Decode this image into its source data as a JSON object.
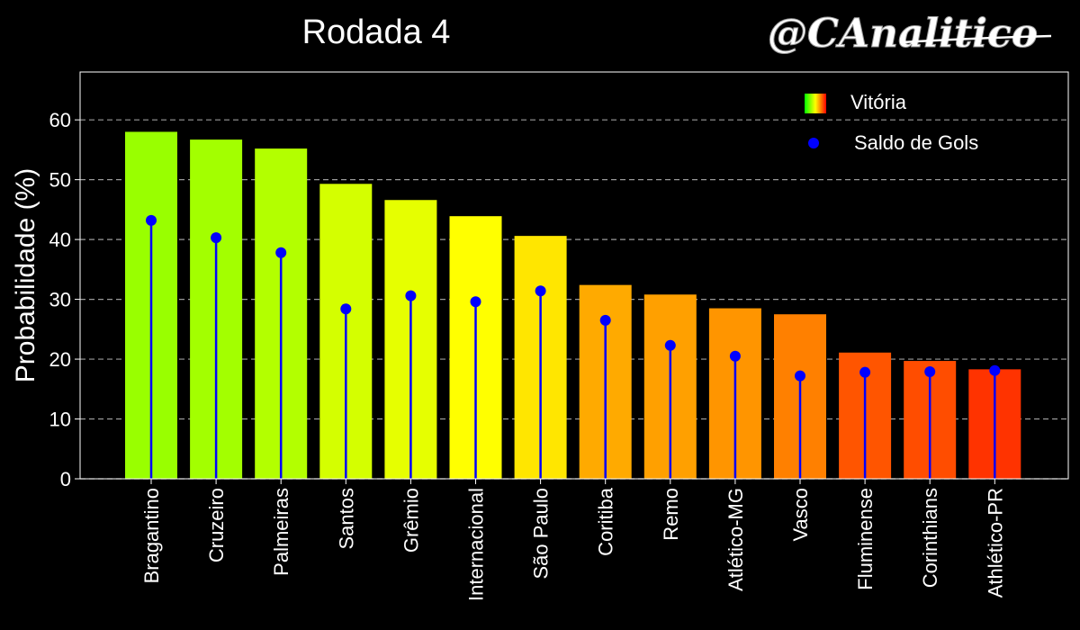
{
  "chart_data": {
    "type": "bar",
    "title": "Rodada 4",
    "ylabel": "Probabilidade (%)",
    "xlabel": "",
    "ylim": [
      0,
      68
    ],
    "yticks": [
      0,
      10,
      20,
      30,
      40,
      50,
      60
    ],
    "grid": true,
    "legend_position": "top-right",
    "categories": [
      "Bragantino",
      "Cruzeiro",
      "Palmeiras",
      "Santos",
      "Grêmio",
      "Internacional",
      "São Paulo",
      "Coritiba",
      "Remo",
      "Atlético-MG",
      "Vasco",
      "Fluminense",
      "Corinthians",
      "Athlético-PR"
    ],
    "series": [
      {
        "name": "Vitória",
        "kind": "bar",
        "values": [
          58.0,
          56.7,
          55.2,
          49.3,
          46.6,
          43.9,
          40.6,
          32.4,
          30.8,
          28.5,
          27.5,
          21.1,
          19.7,
          18.3
        ]
      },
      {
        "name": "Saldo de Gols",
        "kind": "stem",
        "color": "#0000ff",
        "values": [
          43.2,
          40.3,
          37.8,
          28.4,
          30.6,
          29.6,
          31.4,
          26.5,
          22.3,
          20.5,
          17.2,
          17.8,
          17.9,
          18.1
        ]
      }
    ],
    "bar_colors": [
      "#99ff00",
      "#a3ff00",
      "#b3ff00",
      "#d4ff00",
      "#e6ff00",
      "#ffff00",
      "#ffe600",
      "#ffaa00",
      "#ffa000",
      "#ff9500",
      "#ff8000",
      "#ff5500",
      "#ff4d00",
      "#ff3300"
    ],
    "legend_gradient": [
      "#00ff00",
      "#ffff00",
      "#ff0000"
    ]
  },
  "watermark": "@CAnalitico",
  "style": {
    "background": "#000000",
    "text_color": "#ffffff",
    "grid_color": "#9a9a9a"
  }
}
